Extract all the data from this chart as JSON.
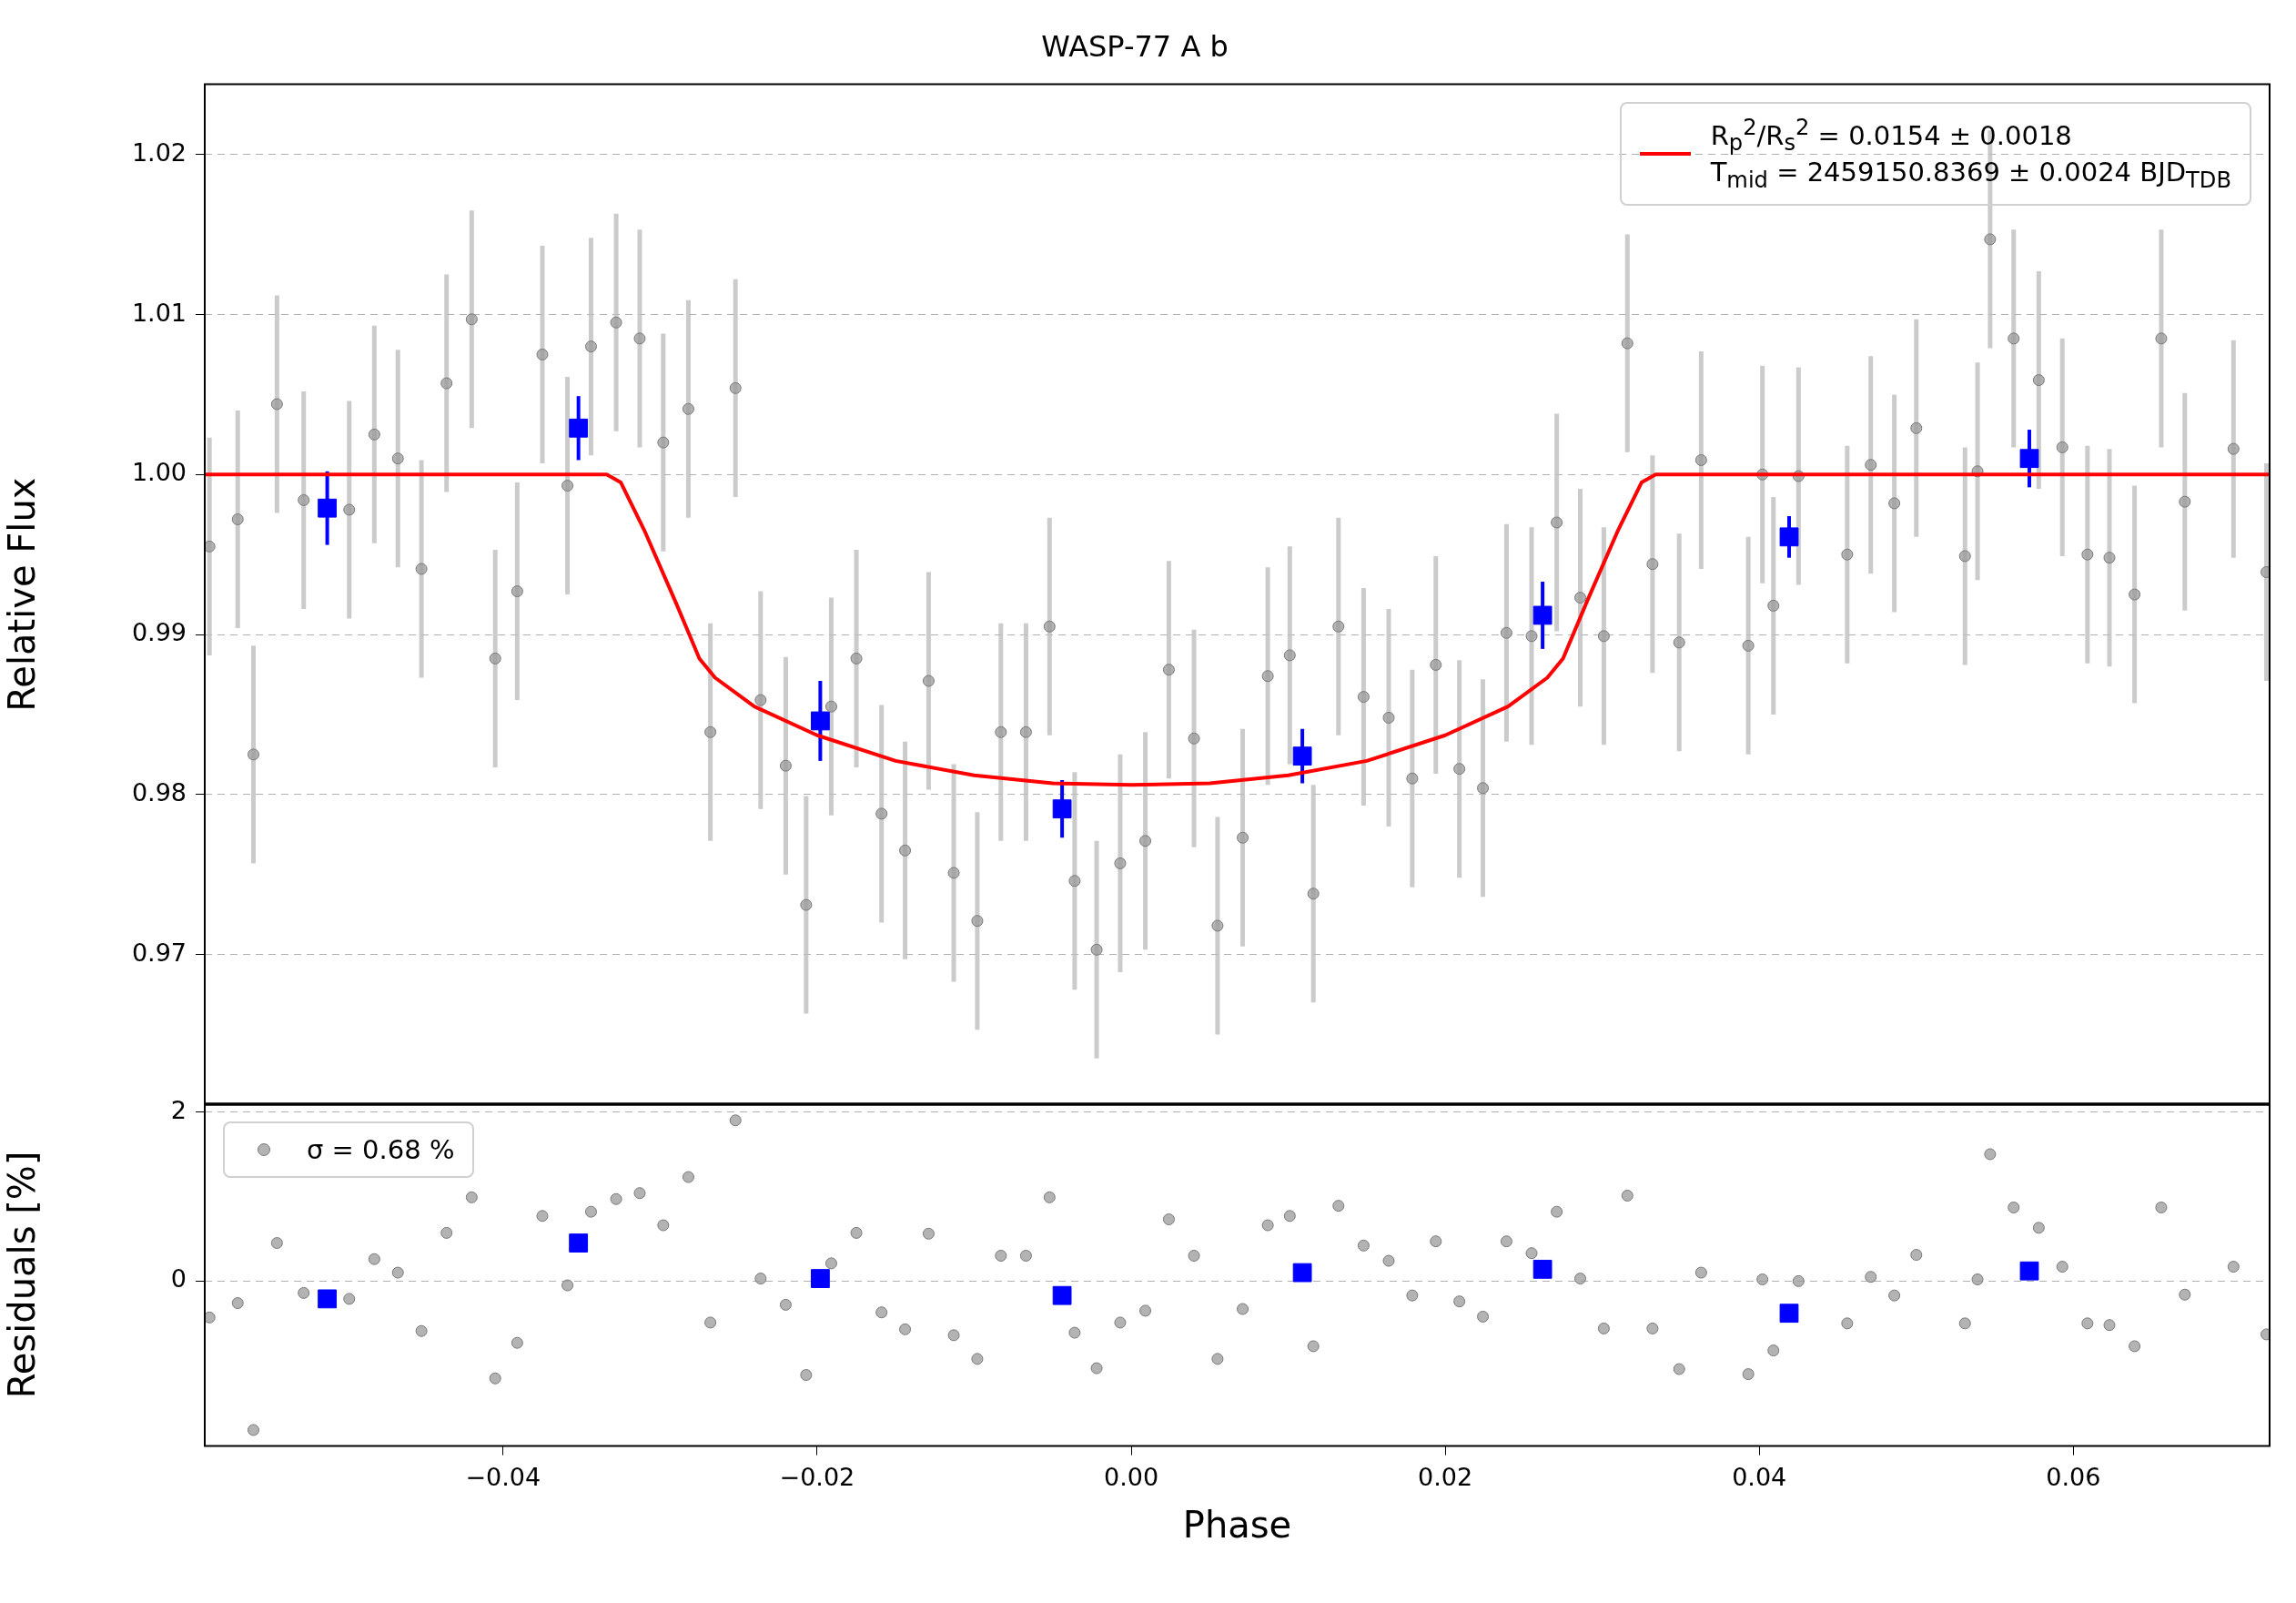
{
  "chart_data": [
    {
      "type": "scatter",
      "title": "WASP-77 A b",
      "ylabel": "Relative Flux",
      "xlim": [
        -0.059,
        0.0725
      ],
      "ylim": [
        0.9606,
        1.0244
      ],
      "xticks": [
        -0.04,
        -0.02,
        0,
        0.02,
        0.04,
        0.06
      ],
      "yticks": [
        0.97,
        0.98,
        0.99,
        {
          "value": 1,
          "label": "1.00"
        },
        1.01,
        1.02
      ],
      "grid": "y",
      "legend": "top right",
      "tick_labels": "y",
      "series": [
        {
          "type": "scatter",
          "color": "#999999",
          "marker": "circle",
          "x": [
            -0.0587,
            -0.0569,
            -0.0559,
            -0.0544,
            -0.0527,
            -0.0498,
            -0.0482,
            -0.0467,
            -0.0452,
            -0.0436,
            -0.042,
            -0.0405,
            -0.0391,
            -0.0375,
            -0.0359,
            -0.0344,
            -0.0328,
            -0.0313,
            -0.0298,
            -0.0282,
            -0.0268,
            -0.0252,
            -0.0236,
            -0.022,
            -0.0207,
            -0.0191,
            -0.0175,
            -0.0159,
            -0.0144,
            -0.0129,
            -0.0113,
            -0.0098,
            -0.0083,
            -0.0067,
            -0.0052,
            -0.0036,
            -0.0022,
            -0.0007,
            0.0009,
            0.0024,
            0.004,
            0.0055,
            0.0071,
            0.0087,
            0.0101,
            0.0116,
            0.0132,
            0.0148,
            0.0164,
            0.0179,
            0.0194,
            0.0209,
            0.0224,
            0.0239,
            0.0255,
            0.0271,
            0.0286,
            0.0301,
            0.0316,
            0.0332,
            0.0349,
            0.0363,
            0.0393,
            0.0402,
            0.0409,
            0.0425,
            0.0456,
            0.0471,
            0.0486,
            0.05,
            0.0531,
            0.0539,
            0.0547,
            0.0562,
            0.0578,
            0.0593,
            0.0609,
            0.0623,
            0.0639,
            0.0656,
            0.0671,
            0.0702,
            0.0723
          ],
          "values": [
            0.9955,
            0.9972,
            0.9825,
            1.0044,
            0.9984,
            0.9978,
            1.0025,
            1.001,
            0.9941,
            1.0057,
            1.0097,
            0.9885,
            0.9927,
            1.0075,
            0.9993,
            1.008,
            1.0095,
            1.0085,
            1.002,
            1.0041,
            0.9839,
            1.0054,
            0.9859,
            0.9818,
            0.9731,
            0.9855,
            0.9885,
            0.9788,
            0.9765,
            0.9871,
            0.9751,
            0.9721,
            0.9839,
            0.9839,
            0.9905,
            0.9746,
            0.9703,
            0.9757,
            0.9771,
            0.9878,
            0.9835,
            0.9718,
            0.9773,
            0.9874,
            0.9887,
            0.9738,
            0.9905,
            0.9861,
            0.9848,
            0.981,
            0.9881,
            0.9816,
            0.9804,
            0.9901,
            0.9899,
            0.997,
            0.9923,
            0.9899,
            1.0082,
            0.9944,
            0.9895,
            1.0009,
            0.9893,
            1,
            0.9918,
            0.9999,
            0.995,
            1.0006,
            0.9982,
            1.0029,
            0.9949,
            1.0002,
            1.0147,
            1.0085,
            1.0059,
            1.0017,
            0.995,
            0.9948,
            0.9925,
            1.0085,
            0.9983,
            1.0016,
            0.9939
          ],
          "errors": [
            0.0068,
            0.0068,
            0.0068,
            0.0068,
            0.0068,
            0.0068,
            0.0068,
            0.0068,
            0.0068,
            0.0068,
            0.0068,
            0.0068,
            0.0068,
            0.0068,
            0.0068,
            0.0068,
            0.0068,
            0.0068,
            0.0068,
            0.0068,
            0.0068,
            0.0068,
            0.0068,
            0.0068,
            0.0068,
            0.0068,
            0.0068,
            0.0068,
            0.0068,
            0.0068,
            0.0068,
            0.0068,
            0.0068,
            0.0068,
            0.0068,
            0.0068,
            0.0068,
            0.0068,
            0.0068,
            0.0068,
            0.0068,
            0.0068,
            0.0068,
            0.0068,
            0.0068,
            0.0068,
            0.0068,
            0.0068,
            0.0068,
            0.0068,
            0.0068,
            0.0068,
            0.0068,
            0.0068,
            0.0068,
            0.0068,
            0.0068,
            0.0068,
            0.0068,
            0.0068,
            0.0068,
            0.0068,
            0.0068,
            0.0068,
            0.0068,
            0.0068,
            0.0068,
            0.0068,
            0.0068,
            0.0068,
            0.0068,
            0.0068,
            0.0068,
            0.0068,
            0.0068,
            0.0068,
            0.0068,
            0.0068,
            0.0068,
            0.0068,
            0.0068,
            0.0068,
            0.0068
          ]
        },
        {
          "type": "line",
          "name": "R$_{p}$$^{2}$/R$_{s}$$^{2}$ = 0.0154 ± 0.0018\nT$_{mid}$ = 2459150.8369 ± 0.0024 BJD$_{TDB}$",
          "color": "#ff0000",
          "marker": "none",
          "line_style": "solid",
          "x": [
            -0.059,
            -0.0334,
            -0.0325,
            -0.031,
            -0.029,
            -0.0275,
            -0.0265,
            -0.024,
            -0.02,
            -0.015,
            -0.01,
            -0.005,
            0,
            0.005,
            0.01,
            0.015,
            0.02,
            0.024,
            0.0265,
            0.0275,
            0.029,
            0.031,
            0.0325,
            0.0334,
            0.0725
          ],
          "values": [
            1,
            1,
            0.9995,
            0.9965,
            0.992,
            0.9885,
            0.9873,
            0.9855,
            0.9837,
            0.9821,
            0.9812,
            0.9807,
            0.9806,
            0.9807,
            0.9812,
            0.9821,
            0.9837,
            0.9855,
            0.9873,
            0.9885,
            0.992,
            0.9965,
            0.9995,
            1,
            1
          ]
        },
        {
          "type": "scatter",
          "color": "#0000ff",
          "marker": "square",
          "x": [
            -0.0512,
            -0.0352,
            -0.0198,
            -0.0044,
            0.0109,
            0.0262,
            0.0419,
            0.0572
          ],
          "values": [
            0.9979,
            1.0029,
            0.9846,
            0.9791,
            0.9824,
            0.9912,
            0.9961,
            1.001
          ],
          "errors": [
            0.0023,
            0.002,
            0.0025,
            0.0018,
            0.0017,
            0.0021,
            0.0013,
            0.0018
          ]
        }
      ]
    },
    {
      "type": "scatter",
      "xlabel": "Phase",
      "ylabel": "Residuals [%]",
      "xlim": [
        -0.059,
        0.0725
      ],
      "ylim": [
        -1.95,
        2.1
      ],
      "xticks": [
        {
          "value": -0.04,
          "label": "−0.04"
        },
        {
          "value": -0.02,
          "label": "−0.02"
        },
        {
          "value": 0,
          "label": "0.00"
        },
        0.02,
        0.04,
        0.06
      ],
      "yticks": [
        0,
        2
      ],
      "grid": "y",
      "legend": "top left",
      "series": [
        {
          "type": "scatter",
          "name": "σ = 0.68 %",
          "color": "#999999",
          "marker": "circle",
          "x": [
            -0.0587,
            -0.0569,
            -0.0559,
            -0.0544,
            -0.0527,
            -0.0498,
            -0.0482,
            -0.0467,
            -0.0452,
            -0.0436,
            -0.042,
            -0.0405,
            -0.0391,
            -0.0375,
            -0.0359,
            -0.0344,
            -0.0328,
            -0.0313,
            -0.0298,
            -0.0282,
            -0.0268,
            -0.0252,
            -0.0236,
            -0.022,
            -0.0207,
            -0.0191,
            -0.0175,
            -0.0159,
            -0.0144,
            -0.0129,
            -0.0113,
            -0.0098,
            -0.0083,
            -0.0067,
            -0.0052,
            -0.0036,
            -0.0022,
            -0.0007,
            0.0009,
            0.0024,
            0.004,
            0.0055,
            0.0071,
            0.0087,
            0.0101,
            0.0116,
            0.0132,
            0.0148,
            0.0164,
            0.0179,
            0.0194,
            0.0209,
            0.0224,
            0.0239,
            0.0255,
            0.0271,
            0.0286,
            0.0301,
            0.0316,
            0.0332,
            0.0349,
            0.0363,
            0.0393,
            0.0402,
            0.0409,
            0.0425,
            0.0456,
            0.0471,
            0.0486,
            0.05,
            0.0531,
            0.0539,
            0.0547,
            0.0562,
            0.0578,
            0.0593,
            0.0609,
            0.0623,
            0.0639,
            0.0656,
            0.0671,
            0.0702,
            0.0723
          ],
          "values": [
            -0.43,
            -0.26,
            -1.76,
            0.45,
            -0.14,
            -0.21,
            0.26,
            0.1,
            -0.59,
            0.57,
            0.99,
            -1.15,
            -0.73,
            0.77,
            -0.05,
            0.82,
            0.97,
            1.04,
            0.66,
            1.23,
            -0.49,
            1.9,
            0.03,
            -0.28,
            -1.11,
            0.21,
            0.57,
            -0.37,
            -0.57,
            0.56,
            -0.64,
            -0.92,
            0.3,
            0.3,
            0.99,
            -0.61,
            -1.03,
            -0.49,
            -0.35,
            0.73,
            0.3,
            -0.92,
            -0.33,
            0.66,
            0.77,
            -0.77,
            0.89,
            0.42,
            0.24,
            -0.17,
            0.47,
            -0.24,
            -0.42,
            0.47,
            0.33,
            0.82,
            0.03,
            -0.56,
            1.01,
            -0.56,
            -1.04,
            0.1,
            -1.1,
            0.02,
            -0.82,
            0,
            -0.5,
            0.05,
            -0.17,
            0.31,
            -0.5,
            0.02,
            1.5,
            0.87,
            0.63,
            0.17,
            -0.5,
            -0.52,
            -0.77,
            0.87,
            -0.16,
            0.17,
            -0.63
          ]
        },
        {
          "type": "scatter",
          "color": "#0000ff",
          "marker": "square",
          "x": [
            -0.0512,
            -0.0352,
            -0.0198,
            -0.0044,
            0.0109,
            0.0262,
            0.0419,
            0.0572
          ],
          "values": [
            -0.21,
            0.45,
            0.03,
            -0.17,
            0.1,
            0.14,
            -0.38,
            0.12
          ]
        }
      ]
    }
  ]
}
